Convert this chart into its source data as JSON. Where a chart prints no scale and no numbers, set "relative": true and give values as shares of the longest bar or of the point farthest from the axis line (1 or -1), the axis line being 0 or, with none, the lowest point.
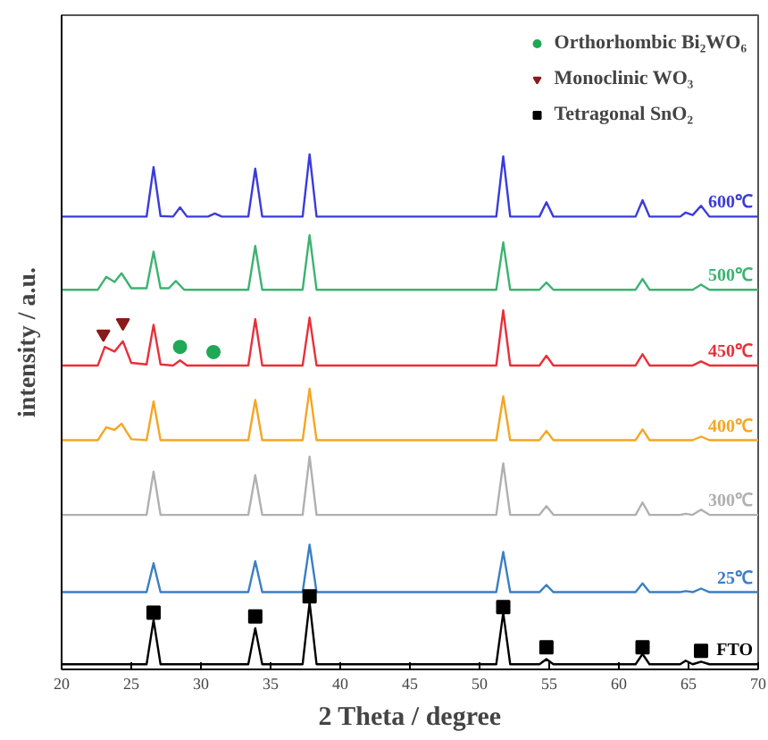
{
  "chart_data": {
    "type": "line",
    "relative": true,
    "xlabel": "2 Theta / degree",
    "ylabel": "intensity / a.u.",
    "xlim": [
      20,
      70
    ],
    "xticks": [
      20,
      25,
      30,
      35,
      40,
      45,
      50,
      55,
      60,
      65,
      70
    ],
    "grid": false,
    "legend": "top right",
    "tick_labels": "x",
    "series": [
      {
        "name": "600℃",
        "color": "#3b3bdb",
        "x": [
          20,
          26.1,
          26.6,
          27.1,
          28.0,
          28.5,
          29.0,
          30.5,
          31.0,
          31.5,
          33.4,
          33.9,
          34.4,
          37.3,
          37.8,
          38.3,
          51.2,
          51.7,
          52.2,
          54.3,
          54.8,
          55.3,
          61.2,
          61.7,
          62.2,
          64.4,
          64.8,
          65.3,
          65.9,
          66.5,
          70
        ],
        "values": [
          0.879,
          0.879,
          0.975,
          0.88,
          0.879,
          0.897,
          0.879,
          0.879,
          0.885,
          0.879,
          0.879,
          0.972,
          0.879,
          0.879,
          1.0,
          0.879,
          0.879,
          0.996,
          0.879,
          0.879,
          0.907,
          0.879,
          0.879,
          0.911,
          0.879,
          0.879,
          0.887,
          0.882,
          0.9,
          0.879,
          0.879
        ]
      },
      {
        "name": "500℃",
        "color": "#3cb371",
        "x": [
          20,
          22.6,
          23.2,
          23.8,
          24.3,
          25.0,
          26.1,
          26.6,
          27.1,
          27.7,
          28.2,
          28.8,
          33.4,
          33.9,
          34.4,
          37.3,
          37.8,
          38.3,
          51.2,
          51.7,
          52.2,
          54.3,
          54.8,
          55.3,
          61.2,
          61.7,
          62.2,
          65.3,
          65.9,
          66.5,
          70
        ],
        "values": [
          0.737,
          0.737,
          0.762,
          0.752,
          0.769,
          0.74,
          0.74,
          0.811,
          0.74,
          0.74,
          0.754,
          0.737,
          0.737,
          0.822,
          0.737,
          0.737,
          0.843,
          0.737,
          0.737,
          0.829,
          0.737,
          0.737,
          0.751,
          0.737,
          0.737,
          0.758,
          0.737,
          0.737,
          0.747,
          0.737,
          0.737
        ]
      },
      {
        "name": "450℃",
        "color": "#e8303a",
        "x": [
          20,
          22.6,
          23.1,
          23.8,
          24.4,
          25.0,
          26.1,
          26.6,
          27.1,
          28.0,
          28.5,
          29.0,
          33.4,
          33.9,
          34.4,
          37.3,
          37.8,
          38.3,
          51.2,
          51.7,
          52.2,
          54.3,
          54.8,
          55.3,
          61.2,
          61.7,
          62.2,
          65.3,
          65.9,
          66.5,
          70
        ],
        "values": [
          0.59,
          0.59,
          0.626,
          0.617,
          0.637,
          0.595,
          0.592,
          0.669,
          0.592,
          0.59,
          0.6,
          0.59,
          0.59,
          0.68,
          0.59,
          0.59,
          0.683,
          0.59,
          0.59,
          0.697,
          0.59,
          0.59,
          0.609,
          0.59,
          0.59,
          0.612,
          0.59,
          0.59,
          0.598,
          0.59,
          0.59
        ]
      },
      {
        "name": "400℃",
        "color": "#f5a623",
        "x": [
          20,
          22.6,
          23.2,
          23.8,
          24.3,
          25.0,
          26.1,
          26.6,
          27.1,
          33.4,
          33.9,
          34.4,
          37.3,
          37.8,
          38.3,
          51.2,
          51.7,
          52.2,
          54.3,
          54.8,
          55.3,
          61.2,
          61.7,
          62.2,
          65.3,
          65.9,
          66.5,
          70
        ],
        "values": [
          0.445,
          0.445,
          0.47,
          0.465,
          0.477,
          0.447,
          0.445,
          0.52,
          0.445,
          0.445,
          0.523,
          0.445,
          0.445,
          0.545,
          0.445,
          0.445,
          0.53,
          0.445,
          0.445,
          0.463,
          0.445,
          0.445,
          0.466,
          0.445,
          0.445,
          0.452,
          0.445,
          0.445
        ]
      },
      {
        "name": "300℃",
        "color": "#b0b0b0",
        "x": [
          20,
          26.1,
          26.6,
          27.1,
          33.4,
          33.9,
          34.4,
          37.3,
          37.8,
          38.3,
          51.2,
          51.7,
          52.2,
          54.3,
          54.8,
          55.3,
          61.2,
          61.7,
          62.2,
          64.4,
          64.8,
          65.3,
          65.9,
          66.5,
          70
        ],
        "values": [
          0.3,
          0.3,
          0.384,
          0.3,
          0.3,
          0.377,
          0.3,
          0.3,
          0.413,
          0.3,
          0.3,
          0.4,
          0.3,
          0.3,
          0.317,
          0.3,
          0.3,
          0.324,
          0.3,
          0.3,
          0.302,
          0.3,
          0.31,
          0.3,
          0.3
        ]
      },
      {
        "name": "25℃",
        "color": "#3a7fc4",
        "x": [
          20,
          26.1,
          26.6,
          27.1,
          33.4,
          33.9,
          34.4,
          37.3,
          37.8,
          38.3,
          51.2,
          51.7,
          52.2,
          54.3,
          54.8,
          55.3,
          61.2,
          61.7,
          62.2,
          64.4,
          64.8,
          65.3,
          65.9,
          66.5,
          70
        ],
        "values": [
          0.15,
          0.15,
          0.206,
          0.15,
          0.15,
          0.21,
          0.15,
          0.15,
          0.242,
          0.15,
          0.15,
          0.228,
          0.15,
          0.15,
          0.164,
          0.15,
          0.15,
          0.167,
          0.15,
          0.15,
          0.152,
          0.15,
          0.157,
          0.15,
          0.15
        ]
      },
      {
        "name": "FTO",
        "color": "#000000",
        "x": [
          20,
          26.1,
          26.6,
          27.1,
          33.4,
          33.9,
          34.4,
          37.3,
          37.8,
          38.3,
          51.2,
          51.7,
          52.2,
          54.3,
          54.8,
          55.3,
          61.2,
          61.7,
          62.2,
          64.4,
          64.8,
          65.3,
          65.9,
          66.5,
          70
        ],
        "values": [
          0.01,
          0.01,
          0.096,
          0.01,
          0.01,
          0.08,
          0.01,
          0.01,
          0.13,
          0.01,
          0.01,
          0.11,
          0.01,
          0.01,
          0.02,
          0.01,
          0.01,
          0.03,
          0.01,
          0.01,
          0.017,
          0.01,
          0.015,
          0.01,
          0.01
        ]
      },
      {
        "name": "Orthorhombic Bi₂WO₆",
        "type": "scatter",
        "marker": "circle",
        "color": "#1fa855",
        "x": [
          28.5,
          30.9
        ],
        "values": [
          0.626,
          0.616
        ]
      },
      {
        "name": "Monoclinic WO₃",
        "type": "scatter",
        "marker": "triangle",
        "color": "#8b1a1a",
        "x": [
          23.0,
          24.4
        ],
        "values": [
          0.651,
          0.673
        ]
      },
      {
        "name": "Tetragonal SnO₂",
        "type": "scatter",
        "marker": "square",
        "color": "#000000",
        "x": [
          26.6,
          33.9,
          37.8,
          51.7,
          54.8,
          61.7,
          65.9
        ],
        "values": [
          0.11,
          0.103,
          0.142,
          0.121,
          0.043,
          0.043,
          0.036
        ]
      }
    ]
  }
}
